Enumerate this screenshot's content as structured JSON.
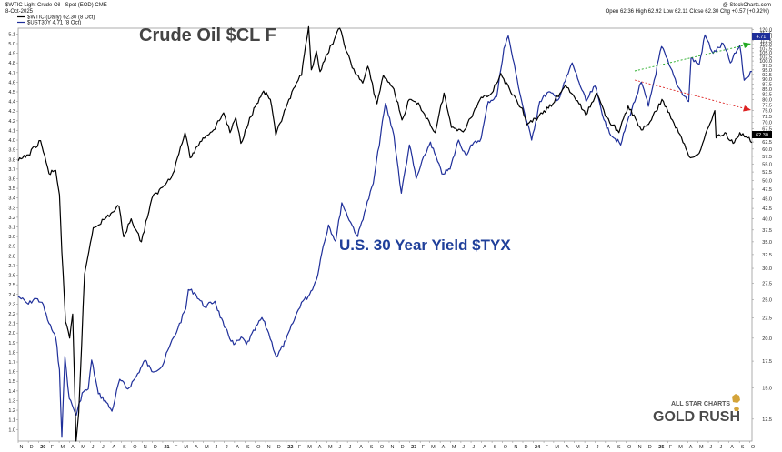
{
  "header": {
    "symbol_line": "$WTIC Light Crude Oil - Spot (EOD) CME",
    "credit": "@ StockCharts.com",
    "date": "8-Oct-2025",
    "ohlc": "Open 62.36  High 62.92  Low 62.11  Close 62.30  Chg +0.57 (+0.92%)",
    "legend_wtic": "$WTIC (Daily) 62.30 (8 Oct)",
    "legend_tyx": "$UST30Y 4.71 (8 Oct)"
  },
  "annotations": {
    "crude": "Crude Oil $CL F",
    "yield": "U.S. 30 Year Yield $TYX"
  },
  "logo": {
    "line1": "ALL STAR CHARTS",
    "line2": "GOLD RUSH"
  },
  "colors": {
    "wtic": "#000000",
    "tyx": "#1f2f9a",
    "green_arrow": "#22aa22",
    "red_arrow": "#dd2222"
  },
  "chart_data": {
    "type": "line",
    "x_range": [
      "2019-11-01",
      "2025-10-08"
    ],
    "left_axis": {
      "label": "",
      "range": [
        0.88,
        5.16
      ],
      "ticks": [
        "1.0",
        "1.1",
        "1.2",
        "1.3",
        "1.4",
        "1.5",
        "1.6",
        "1.7",
        "1.8",
        "1.9",
        "2.0",
        "2.1",
        "2.2",
        "2.3",
        "2.4",
        "2.5",
        "2.6",
        "2.7",
        "2.8",
        "2.9",
        "3.0",
        "3.1",
        "3.2",
        "3.3",
        "3.4",
        "3.5",
        "3.6",
        "3.7",
        "3.8",
        "3.9",
        "4.0",
        "4.1",
        "4.2",
        "4.3",
        "4.4",
        "4.5",
        "4.6",
        "4.7",
        "4.8",
        "4.9",
        "5.0",
        "5.1"
      ]
    },
    "right_axis": {
      "label": "",
      "scale": "log",
      "range": [
        11,
        121
      ],
      "ticks": [
        "12.5",
        "15.0",
        "17.5",
        "20.0",
        "22.5",
        "25.0",
        "27.5",
        "30.0",
        "32.5",
        "35.0",
        "37.5",
        "40.0",
        "42.5",
        "45.0",
        "47.5",
        "50.0",
        "52.5",
        "55.0",
        "57.5",
        "60.0",
        "62.5",
        "65.0",
        "67.5",
        "70.0",
        "72.5",
        "75.0",
        "77.5",
        "80.0",
        "82.5",
        "85.0",
        "87.5",
        "90.0",
        "92.5",
        "95.0",
        "97.5",
        "100.0",
        "102.5",
        "105.0",
        "107.5",
        "110.0",
        "112.5",
        "115.0",
        "117.5",
        "120.0"
      ]
    },
    "x_ticks": [
      {
        "label": "N",
        "date": "2019-11-01"
      },
      {
        "label": "D",
        "date": "2019-12-01"
      },
      {
        "label": "20",
        "date": "2020-01-01"
      },
      {
        "label": "F",
        "date": "2020-02-01"
      },
      {
        "label": "M",
        "date": "2020-03-01"
      },
      {
        "label": "A",
        "date": "2020-04-01"
      },
      {
        "label": "M",
        "date": "2020-05-01"
      },
      {
        "label": "J",
        "date": "2020-06-01"
      },
      {
        "label": "J",
        "date": "2020-07-01"
      },
      {
        "label": "A",
        "date": "2020-08-01"
      },
      {
        "label": "S",
        "date": "2020-09-01"
      },
      {
        "label": "O",
        "date": "2020-10-01"
      },
      {
        "label": "N",
        "date": "2020-11-01"
      },
      {
        "label": "D",
        "date": "2020-12-01"
      },
      {
        "label": "21",
        "date": "2021-01-01"
      },
      {
        "label": "F",
        "date": "2021-02-01"
      },
      {
        "label": "M",
        "date": "2021-03-01"
      },
      {
        "label": "A",
        "date": "2021-04-01"
      },
      {
        "label": "M",
        "date": "2021-05-01"
      },
      {
        "label": "J",
        "date": "2021-06-01"
      },
      {
        "label": "J",
        "date": "2021-07-01"
      },
      {
        "label": "A",
        "date": "2021-08-01"
      },
      {
        "label": "S",
        "date": "2021-09-01"
      },
      {
        "label": "O",
        "date": "2021-10-01"
      },
      {
        "label": "N",
        "date": "2021-11-01"
      },
      {
        "label": "D",
        "date": "2021-12-01"
      },
      {
        "label": "22",
        "date": "2022-01-01"
      },
      {
        "label": "F",
        "date": "2022-02-01"
      },
      {
        "label": "M",
        "date": "2022-03-01"
      },
      {
        "label": "A",
        "date": "2022-04-01"
      },
      {
        "label": "M",
        "date": "2022-05-01"
      },
      {
        "label": "J",
        "date": "2022-06-01"
      },
      {
        "label": "J",
        "date": "2022-07-01"
      },
      {
        "label": "A",
        "date": "2022-08-01"
      },
      {
        "label": "S",
        "date": "2022-09-01"
      },
      {
        "label": "O",
        "date": "2022-10-01"
      },
      {
        "label": "N",
        "date": "2022-11-01"
      },
      {
        "label": "D",
        "date": "2022-12-01"
      },
      {
        "label": "23",
        "date": "2023-01-01"
      },
      {
        "label": "F",
        "date": "2023-02-01"
      },
      {
        "label": "M",
        "date": "2023-03-01"
      },
      {
        "label": "A",
        "date": "2023-04-01"
      },
      {
        "label": "M",
        "date": "2023-05-01"
      },
      {
        "label": "J",
        "date": "2023-06-01"
      },
      {
        "label": "J",
        "date": "2023-07-01"
      },
      {
        "label": "A",
        "date": "2023-08-01"
      },
      {
        "label": "S",
        "date": "2023-09-01"
      },
      {
        "label": "O",
        "date": "2023-10-01"
      },
      {
        "label": "N",
        "date": "2023-11-01"
      },
      {
        "label": "D",
        "date": "2023-12-01"
      },
      {
        "label": "24",
        "date": "2024-01-01"
      },
      {
        "label": "F",
        "date": "2024-02-01"
      },
      {
        "label": "M",
        "date": "2024-03-01"
      },
      {
        "label": "A",
        "date": "2024-04-01"
      },
      {
        "label": "M",
        "date": "2024-05-01"
      },
      {
        "label": "J",
        "date": "2024-06-01"
      },
      {
        "label": "J",
        "date": "2024-07-01"
      },
      {
        "label": "A",
        "date": "2024-08-01"
      },
      {
        "label": "S",
        "date": "2024-09-01"
      },
      {
        "label": "O",
        "date": "2024-10-01"
      },
      {
        "label": "N",
        "date": "2024-11-01"
      },
      {
        "label": "D",
        "date": "2024-12-01"
      },
      {
        "label": "25",
        "date": "2025-01-01"
      },
      {
        "label": "F",
        "date": "2025-02-01"
      },
      {
        "label": "M",
        "date": "2025-03-01"
      },
      {
        "label": "A",
        "date": "2025-04-01"
      },
      {
        "label": "M",
        "date": "2025-05-01"
      },
      {
        "label": "J",
        "date": "2025-06-01"
      },
      {
        "label": "J",
        "date": "2025-07-01"
      },
      {
        "label": "A",
        "date": "2025-08-01"
      },
      {
        "label": "S",
        "date": "2025-09-01"
      },
      {
        "label": "O",
        "date": "2025-10-01"
      }
    ],
    "last_value_tags": {
      "tyx": "4.71",
      "wtic": "62.30"
    },
    "series": [
      {
        "name": "$UST30Y",
        "axis": "left",
        "points": [
          [
            "2019-11-01",
            2.38
          ],
          [
            "2019-12-01",
            2.3
          ],
          [
            "2019-12-20",
            2.36
          ],
          [
            "2020-01-10",
            2.32
          ],
          [
            "2020-01-31",
            2.1
          ],
          [
            "2020-02-20",
            1.95
          ],
          [
            "2020-03-02",
            1.62
          ],
          [
            "2020-03-09",
            0.92
          ],
          [
            "2020-03-18",
            1.76
          ],
          [
            "2020-03-31",
            1.32
          ],
          [
            "2020-04-21",
            1.15
          ],
          [
            "2020-05-08",
            1.38
          ],
          [
            "2020-05-26",
            1.42
          ],
          [
            "2020-06-05",
            1.72
          ],
          [
            "2020-06-25",
            1.37
          ],
          [
            "2020-07-15",
            1.3
          ],
          [
            "2020-08-04",
            1.19
          ],
          [
            "2020-08-27",
            1.52
          ],
          [
            "2020-09-20",
            1.42
          ],
          [
            "2020-10-15",
            1.55
          ],
          [
            "2020-11-10",
            1.72
          ],
          [
            "2020-11-30",
            1.6
          ],
          [
            "2020-12-31",
            1.66
          ],
          [
            "2021-01-20",
            1.85
          ],
          [
            "2021-02-15",
            2.05
          ],
          [
            "2021-03-10",
            2.25
          ],
          [
            "2021-03-18",
            2.45
          ],
          [
            "2021-04-05",
            2.42
          ],
          [
            "2021-05-05",
            2.27
          ],
          [
            "2021-06-04",
            2.33
          ],
          [
            "2021-07-02",
            2.06
          ],
          [
            "2021-07-30",
            1.88
          ],
          [
            "2021-08-25",
            1.95
          ],
          [
            "2021-09-05",
            1.88
          ],
          [
            "2021-10-21",
            2.16
          ],
          [
            "2021-11-10",
            2.0
          ],
          [
            "2021-12-03",
            1.75
          ],
          [
            "2021-12-31",
            1.92
          ],
          [
            "2022-01-20",
            2.1
          ],
          [
            "2022-02-15",
            2.32
          ],
          [
            "2022-03-07",
            2.38
          ],
          [
            "2022-03-31",
            2.55
          ],
          [
            "2022-04-20",
            2.9
          ],
          [
            "2022-05-06",
            3.12
          ],
          [
            "2022-05-27",
            2.95
          ],
          [
            "2022-06-14",
            3.35
          ],
          [
            "2022-07-10",
            3.15
          ],
          [
            "2022-07-31",
            3.0
          ],
          [
            "2022-08-20",
            3.25
          ],
          [
            "2022-09-15",
            3.55
          ],
          [
            "2022-10-21",
            4.38
          ],
          [
            "2022-11-15",
            4.05
          ],
          [
            "2022-12-07",
            3.45
          ],
          [
            "2022-12-31",
            3.95
          ],
          [
            "2023-01-20",
            3.6
          ],
          [
            "2023-02-15",
            3.85
          ],
          [
            "2023-03-03",
            3.98
          ],
          [
            "2023-04-06",
            3.65
          ],
          [
            "2023-04-30",
            3.7
          ],
          [
            "2023-05-25",
            4.0
          ],
          [
            "2023-06-15",
            3.85
          ],
          [
            "2023-07-05",
            3.95
          ],
          [
            "2023-07-31",
            4.02
          ],
          [
            "2023-08-21",
            4.4
          ],
          [
            "2023-09-15",
            4.45
          ],
          [
            "2023-10-06",
            4.95
          ],
          [
            "2023-10-19",
            5.08
          ],
          [
            "2023-11-10",
            4.7
          ],
          [
            "2023-12-01",
            4.35
          ],
          [
            "2023-12-27",
            4.0
          ],
          [
            "2024-01-20",
            4.4
          ],
          [
            "2024-02-15",
            4.5
          ],
          [
            "2024-03-15",
            4.42
          ],
          [
            "2024-04-25",
            4.8
          ],
          [
            "2024-05-15",
            4.6
          ],
          [
            "2024-06-05",
            4.4
          ],
          [
            "2024-07-01",
            4.56
          ],
          [
            "2024-08-05",
            4.12
          ],
          [
            "2024-09-15",
            3.95
          ],
          [
            "2024-10-01",
            4.15
          ],
          [
            "2024-10-31",
            4.45
          ],
          [
            "2024-11-15",
            4.6
          ],
          [
            "2024-12-06",
            4.35
          ],
          [
            "2025-01-14",
            4.97
          ],
          [
            "2025-02-05",
            4.78
          ],
          [
            "2025-03-04",
            4.55
          ],
          [
            "2025-04-04",
            4.4
          ],
          [
            "2025-04-11",
            4.85
          ],
          [
            "2025-05-05",
            4.78
          ],
          [
            "2025-05-22",
            5.09
          ],
          [
            "2025-06-15",
            4.9
          ],
          [
            "2025-07-15",
            5.0
          ],
          [
            "2025-08-05",
            4.8
          ],
          [
            "2025-09-02",
            4.98
          ],
          [
            "2025-09-15",
            4.62
          ],
          [
            "2025-10-08",
            4.71
          ]
        ]
      },
      {
        "name": "$WTIC",
        "axis": "right",
        "points": [
          [
            "2019-11-01",
            56
          ],
          [
            "2019-12-01",
            58
          ],
          [
            "2020-01-06",
            63
          ],
          [
            "2020-01-31",
            52
          ],
          [
            "2020-02-20",
            53
          ],
          [
            "2020-03-02",
            46
          ],
          [
            "2020-03-09",
            33
          ],
          [
            "2020-03-20",
            22
          ],
          [
            "2020-04-01",
            20
          ],
          [
            "2020-04-10",
            23
          ],
          [
            "2020-04-20",
            11
          ],
          [
            "2020-04-28",
            13
          ],
          [
            "2020-05-15",
            29
          ],
          [
            "2020-06-10",
            38
          ],
          [
            "2020-07-15",
            40
          ],
          [
            "2020-08-25",
            43
          ],
          [
            "2020-09-08",
            36
          ],
          [
            "2020-09-30",
            40
          ],
          [
            "2020-10-30",
            35
          ],
          [
            "2020-11-30",
            45
          ],
          [
            "2020-12-31",
            48
          ],
          [
            "2021-01-31",
            52
          ],
          [
            "2021-03-08",
            66
          ],
          [
            "2021-03-23",
            57
          ],
          [
            "2021-04-30",
            64
          ],
          [
            "2021-05-31",
            67
          ],
          [
            "2021-06-30",
            74
          ],
          [
            "2021-07-19",
            66
          ],
          [
            "2021-08-05",
            72
          ],
          [
            "2021-08-20",
            62
          ],
          [
            "2021-09-15",
            72
          ],
          [
            "2021-10-26",
            84
          ],
          [
            "2021-11-15",
            80
          ],
          [
            "2021-12-01",
            65
          ],
          [
            "2021-12-31",
            76
          ],
          [
            "2022-01-31",
            88
          ],
          [
            "2022-02-15",
            92
          ],
          [
            "2022-03-08",
            122
          ],
          [
            "2022-03-16",
            95
          ],
          [
            "2022-03-31",
            106
          ],
          [
            "2022-04-11",
            94
          ],
          [
            "2022-05-15",
            110
          ],
          [
            "2022-06-08",
            121
          ],
          [
            "2022-06-30",
            105
          ],
          [
            "2022-07-15",
            96
          ],
          [
            "2022-08-15",
            88
          ],
          [
            "2022-08-30",
            97
          ],
          [
            "2022-09-26",
            78
          ],
          [
            "2022-10-15",
            92
          ],
          [
            "2022-11-15",
            85
          ],
          [
            "2022-12-09",
            71
          ],
          [
            "2022-12-31",
            80
          ],
          [
            "2023-01-31",
            77
          ],
          [
            "2023-03-17",
            66
          ],
          [
            "2023-04-12",
            83
          ],
          [
            "2023-05-04",
            68
          ],
          [
            "2023-06-12",
            67
          ],
          [
            "2023-07-31",
            81
          ],
          [
            "2023-08-31",
            83
          ],
          [
            "2023-09-27",
            93
          ],
          [
            "2023-10-31",
            82
          ],
          [
            "2023-11-30",
            76
          ],
          [
            "2023-12-12",
            69
          ],
          [
            "2024-01-15",
            72
          ],
          [
            "2024-02-28",
            78
          ],
          [
            "2024-04-05",
            87
          ],
          [
            "2024-05-15",
            78
          ],
          [
            "2024-06-04",
            73
          ],
          [
            "2024-07-05",
            83
          ],
          [
            "2024-08-05",
            72
          ],
          [
            "2024-09-10",
            66
          ],
          [
            "2024-10-07",
            77
          ],
          [
            "2024-11-15",
            67
          ],
          [
            "2024-12-15",
            71
          ],
          [
            "2025-01-15",
            80
          ],
          [
            "2025-02-15",
            71
          ],
          [
            "2025-03-05",
            66
          ],
          [
            "2025-04-09",
            57
          ],
          [
            "2025-04-30",
            58
          ],
          [
            "2025-05-15",
            62
          ],
          [
            "2025-06-20",
            75
          ],
          [
            "2025-06-24",
            64
          ],
          [
            "2025-07-20",
            66
          ],
          [
            "2025-08-13",
            62
          ],
          [
            "2025-09-02",
            66
          ],
          [
            "2025-09-25",
            64
          ],
          [
            "2025-10-08",
            62.3
          ]
        ]
      }
    ]
  }
}
